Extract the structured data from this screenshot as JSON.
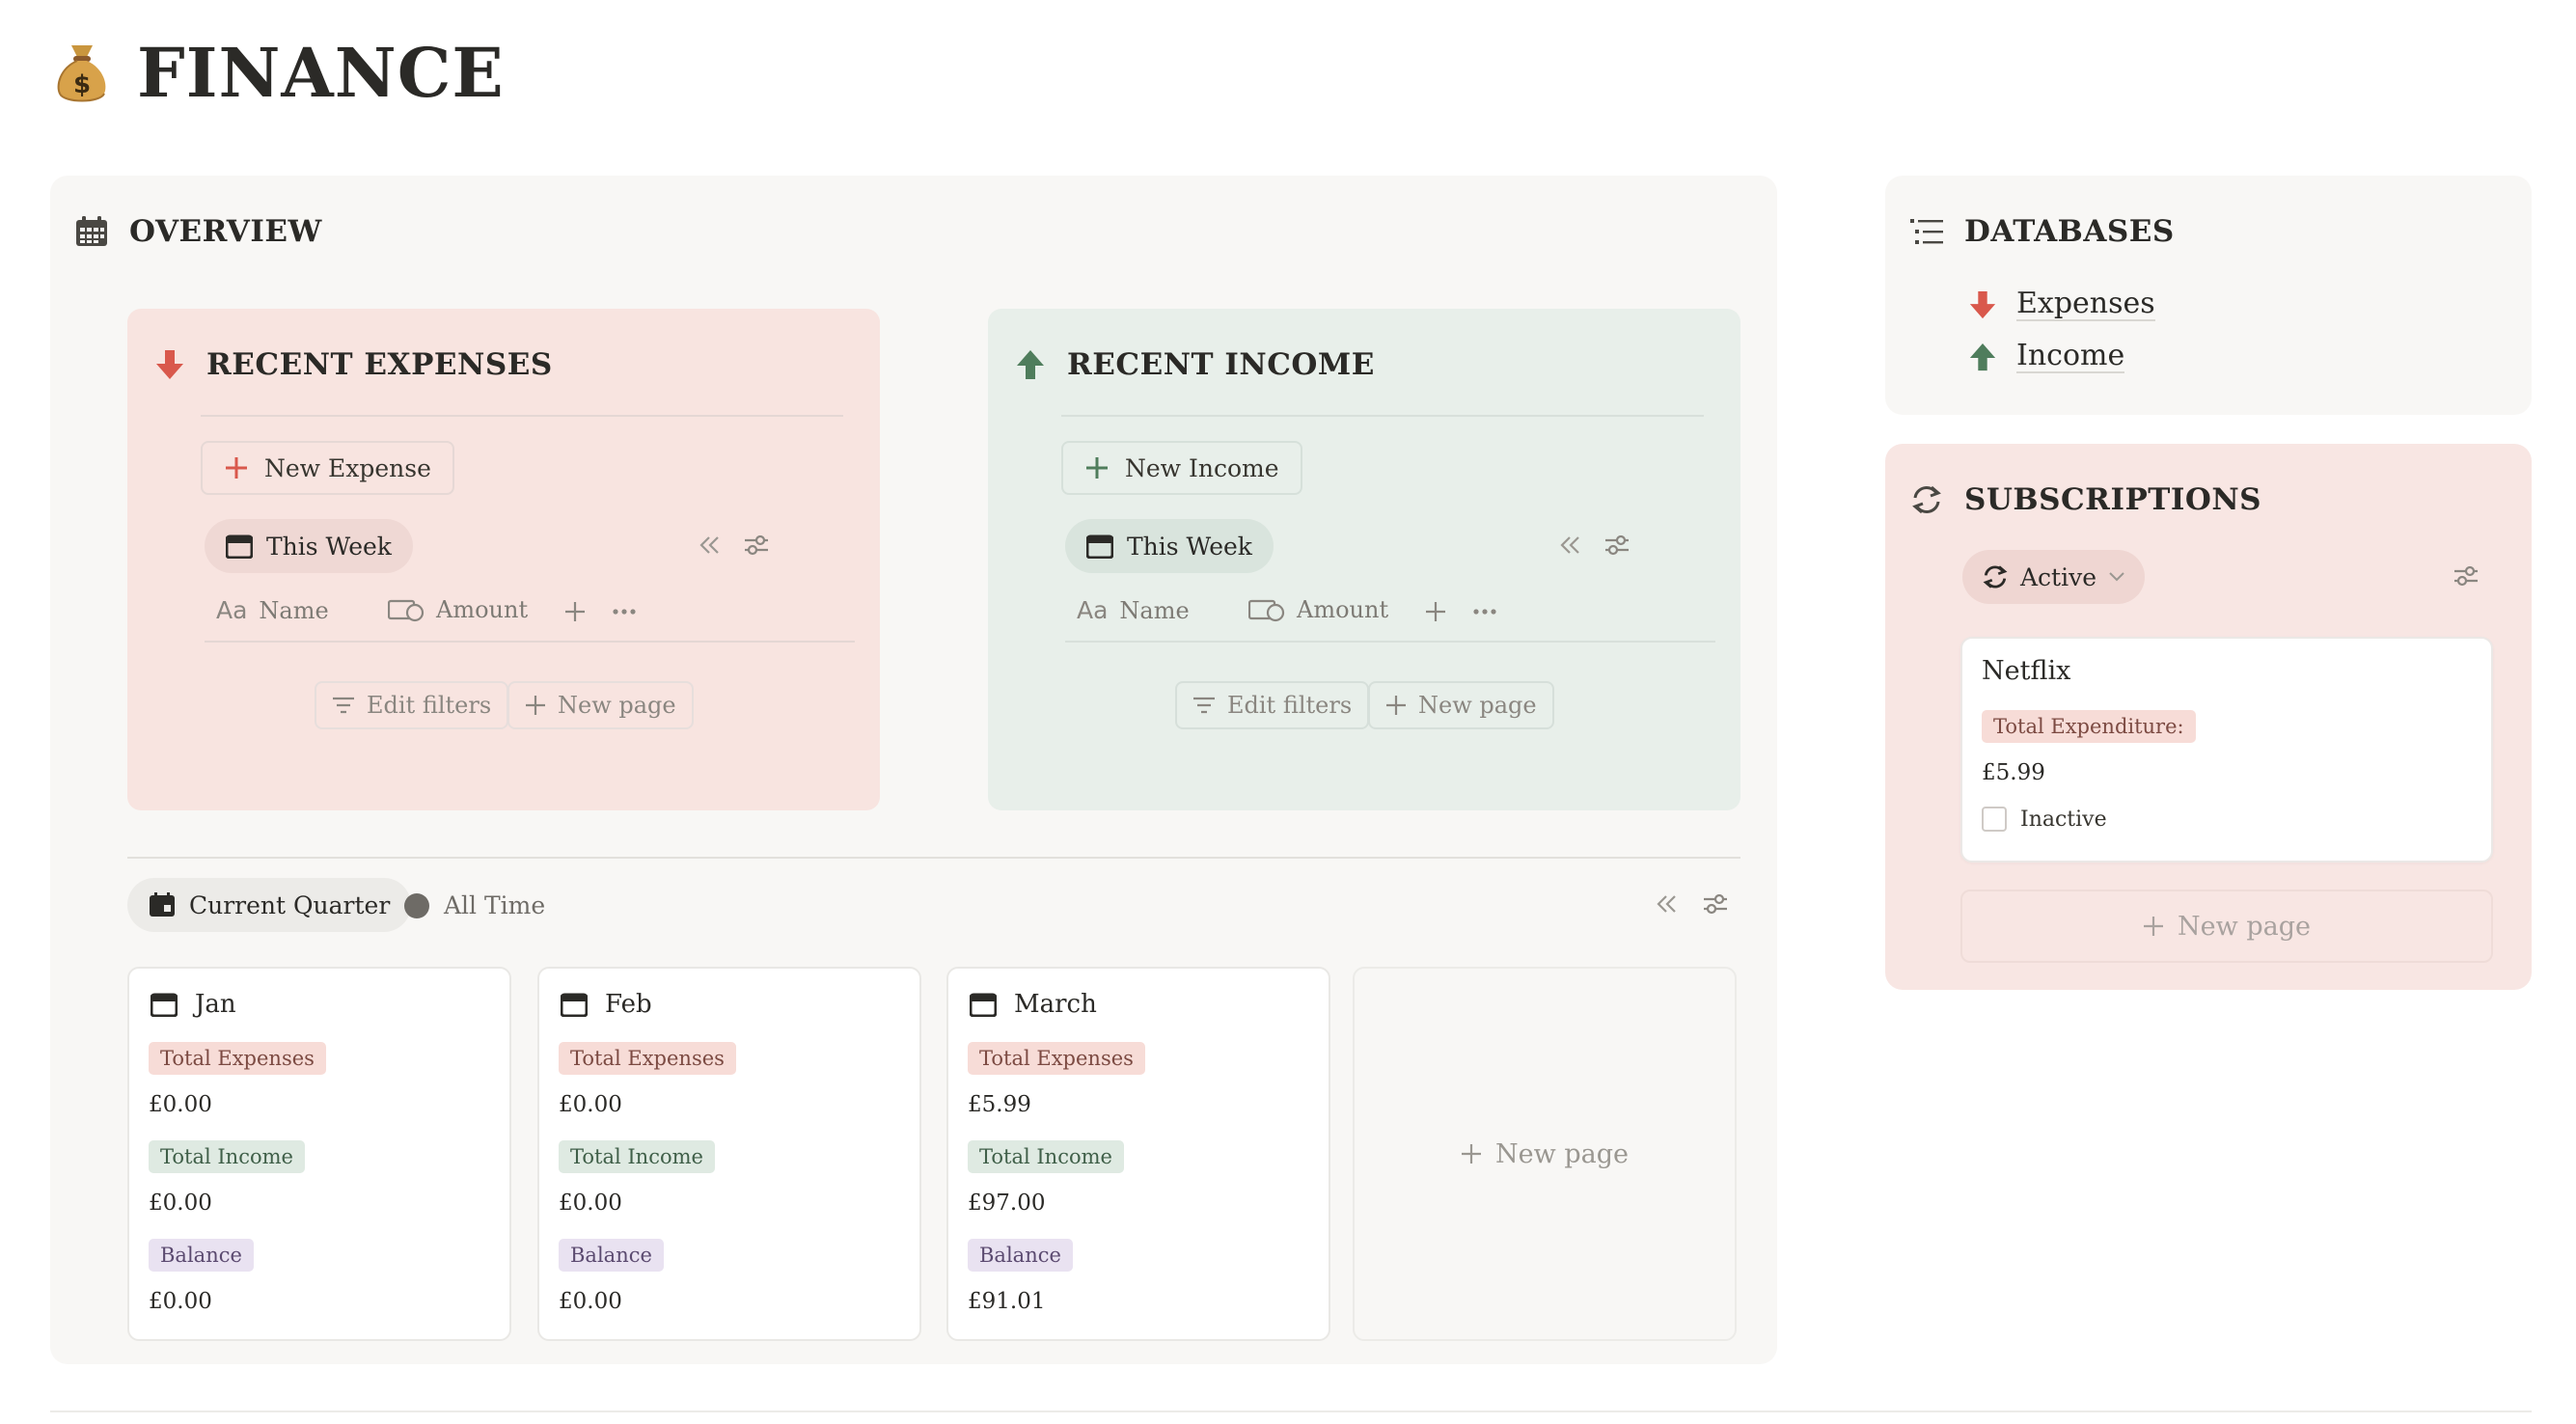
{
  "page": {
    "title": "FINANCE",
    "icon": "money-bag-icon"
  },
  "overview": {
    "heading": "OVERVIEW",
    "icon": "calendar-grid-icon",
    "recent_expenses": {
      "heading": "RECENT EXPENSES",
      "icon": "arrow-down-red-icon",
      "new_button": "New Expense",
      "filter_pill": "This Week",
      "columns": [
        "Name",
        "Amount"
      ],
      "edit_filters": "Edit filters",
      "new_page": "New page"
    },
    "recent_income": {
      "heading": "RECENT INCOME",
      "icon": "arrow-up-green-icon",
      "new_button": "New Income",
      "filter_pill": "This Week",
      "columns": [
        "Name",
        "Amount"
      ],
      "edit_filters": "Edit filters",
      "new_page": "New page"
    },
    "views": {
      "current": "Current Quarter",
      "other": "All Time"
    },
    "months": [
      {
        "name": "Jan",
        "total_expenses_label": "Total Expenses",
        "total_expenses": "£0.00",
        "total_income_label": "Total Income",
        "total_income": "£0.00",
        "balance_label": "Balance",
        "balance": "£0.00"
      },
      {
        "name": "Feb",
        "total_expenses_label": "Total Expenses",
        "total_expenses": "£0.00",
        "total_income_label": "Total Income",
        "total_income": "£0.00",
        "balance_label": "Balance",
        "balance": "£0.00"
      },
      {
        "name": "March",
        "total_expenses_label": "Total Expenses",
        "total_expenses": "£5.99",
        "total_income_label": "Total Income",
        "total_income": "£97.00",
        "balance_label": "Balance",
        "balance": "£91.01"
      }
    ],
    "new_page": "New page"
  },
  "databases": {
    "heading": "DATABASES",
    "items": [
      {
        "label": "Expenses",
        "icon": "arrow-down-red-icon"
      },
      {
        "label": "Income",
        "icon": "arrow-up-green-icon"
      }
    ]
  },
  "subscriptions": {
    "heading": "SUBSCRIPTIONS",
    "filter_pill": "Active",
    "card": {
      "name": "Netflix",
      "expenditure_label": "Total Expenditure:",
      "expenditure": "£5.99",
      "inactive_label": "Inactive",
      "inactive_checked": false
    },
    "new_page": "New page"
  },
  "colors": {
    "expense_red": "#d9584c",
    "income_green": "#4f7d5c",
    "expenses_card_bg": "#f8e4e0",
    "income_card_bg": "#e8efea",
    "panel_bg": "#f8f7f5"
  }
}
